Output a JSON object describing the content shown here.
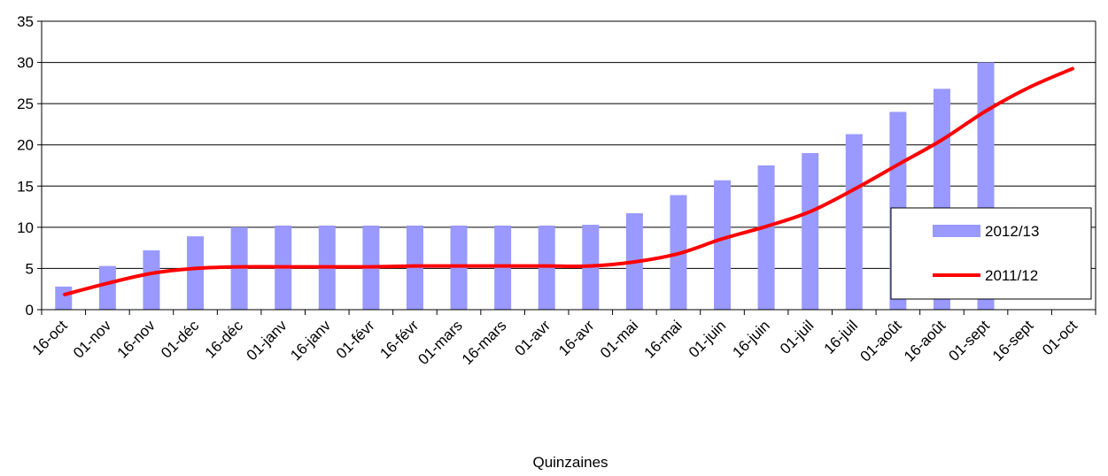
{
  "chart_data": {
    "type": "bar",
    "title": "",
    "xlabel": "Quinzaines",
    "ylabel": "",
    "ylim": [
      0,
      35
    ],
    "yticks": [
      0,
      5,
      10,
      15,
      20,
      25,
      30,
      35
    ],
    "grid": true,
    "legend_position": "right",
    "categories": [
      "16-oct",
      "01-nov",
      "16-nov",
      "01-déc",
      "16-déc",
      "01-janv",
      "16-janv",
      "01-févr",
      "16-févr",
      "01-mars",
      "16-mars",
      "01-avr",
      "16-avr",
      "01-mai",
      "16-mai",
      "01-juin",
      "16-juin",
      "01-juil",
      "16-juil",
      "01-août",
      "16-août",
      "01-sept",
      "16-sept",
      "01-oct"
    ],
    "series": [
      {
        "name": "2012/13",
        "type": "bar",
        "color": "#9999ff",
        "values": [
          2.8,
          5.3,
          7.2,
          8.9,
          10.0,
          10.2,
          10.2,
          10.2,
          10.2,
          10.2,
          10.2,
          10.2,
          10.3,
          11.7,
          13.9,
          15.7,
          17.5,
          19.0,
          21.3,
          24.0,
          26.8,
          30.0,
          null,
          null
        ]
      },
      {
        "name": "2011/12",
        "type": "line",
        "color": "#ff0000",
        "values": [
          1.8,
          3.2,
          4.4,
          5.0,
          5.2,
          5.2,
          5.2,
          5.2,
          5.3,
          5.3,
          5.3,
          5.3,
          5.3,
          5.8,
          6.8,
          8.6,
          10.1,
          11.9,
          14.6,
          17.6,
          20.6,
          24.1,
          27.0,
          29.3
        ]
      }
    ]
  }
}
